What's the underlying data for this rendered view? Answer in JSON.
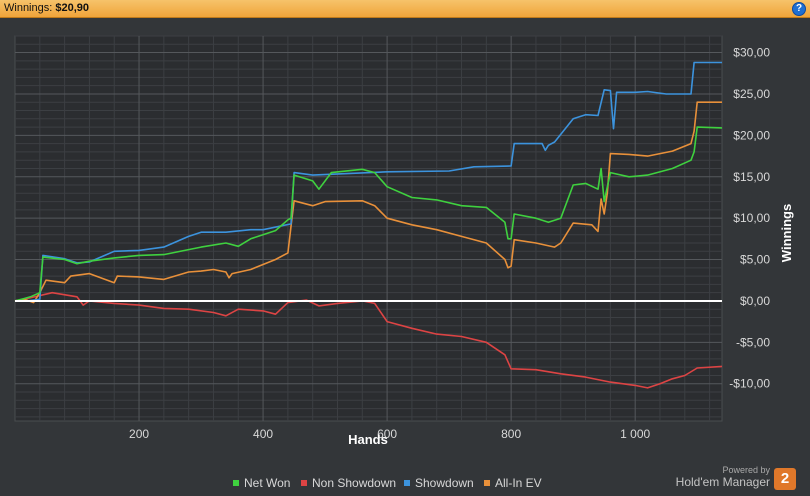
{
  "header": {
    "label": "Winnings:",
    "value": "$20,90",
    "help": "?"
  },
  "chart_data": {
    "type": "line",
    "xlabel": "Hands",
    "ylabel": "Winnings",
    "xlim": [
      0,
      1140
    ],
    "ylim": [
      -14.5,
      32
    ],
    "x_ticks": [
      200,
      400,
      600,
      800,
      1000
    ],
    "x_tick_labels": [
      "200",
      "400",
      "600",
      "800",
      "1 000"
    ],
    "y_ticks": [
      30,
      25,
      20,
      15,
      10,
      5,
      0,
      -5,
      -10
    ],
    "y_tick_labels": [
      "$30,00",
      "$25,00",
      "$20,00",
      "$15,00",
      "$10,00",
      "$5,00",
      "$0,00",
      "-$5,00",
      "-$10,00"
    ],
    "grid": true,
    "zero_line": true,
    "legend_position": "bottom",
    "series": [
      {
        "name": "Net Won",
        "color": "#3fd13f",
        "points": [
          [
            0,
            0
          ],
          [
            15,
            0.3
          ],
          [
            25,
            0.5
          ],
          [
            40,
            1
          ],
          [
            45,
            5.3
          ],
          [
            80,
            5
          ],
          [
            100,
            4.5
          ],
          [
            120,
            4.8
          ],
          [
            160,
            5.2
          ],
          [
            200,
            5.5
          ],
          [
            240,
            5.6
          ],
          [
            280,
            6.2
          ],
          [
            300,
            6.5
          ],
          [
            340,
            7
          ],
          [
            360,
            6.6
          ],
          [
            380,
            7.5
          ],
          [
            420,
            8.5
          ],
          [
            440,
            9.8
          ],
          [
            445,
            10
          ],
          [
            450,
            15.2
          ],
          [
            480,
            14.5
          ],
          [
            490,
            13.5
          ],
          [
            510,
            15.5
          ],
          [
            560,
            15.9
          ],
          [
            580,
            15.5
          ],
          [
            600,
            13.8
          ],
          [
            640,
            12.5
          ],
          [
            680,
            12.2
          ],
          [
            720,
            11.5
          ],
          [
            760,
            11.3
          ],
          [
            790,
            9.5
          ],
          [
            795,
            7.5
          ],
          [
            800,
            7.5
          ],
          [
            805,
            10.5
          ],
          [
            840,
            10
          ],
          [
            860,
            9.5
          ],
          [
            880,
            10
          ],
          [
            900,
            14
          ],
          [
            920,
            14.2
          ],
          [
            940,
            13.5
          ],
          [
            945,
            16
          ],
          [
            950,
            12
          ],
          [
            960,
            15.5
          ],
          [
            990,
            15
          ],
          [
            1020,
            15.2
          ],
          [
            1060,
            16
          ],
          [
            1090,
            17
          ],
          [
            1095,
            18
          ],
          [
            1100,
            21
          ],
          [
            1140,
            20.9
          ]
        ]
      },
      {
        "name": "Non Showdown",
        "color": "#dd4444",
        "points": [
          [
            0,
            0
          ],
          [
            20,
            0.3
          ],
          [
            60,
            1
          ],
          [
            100,
            0.5
          ],
          [
            110,
            -0.5
          ],
          [
            120,
            0
          ],
          [
            160,
            -0.3
          ],
          [
            200,
            -0.5
          ],
          [
            240,
            -0.9
          ],
          [
            280,
            -1
          ],
          [
            320,
            -1.4
          ],
          [
            340,
            -1.8
          ],
          [
            360,
            -1
          ],
          [
            400,
            -1.2
          ],
          [
            420,
            -1.6
          ],
          [
            440,
            -0.2
          ],
          [
            470,
            0.1
          ],
          [
            490,
            -0.6
          ],
          [
            520,
            -0.3
          ],
          [
            560,
            0
          ],
          [
            580,
            -0.3
          ],
          [
            600,
            -2.5
          ],
          [
            640,
            -3.3
          ],
          [
            680,
            -4
          ],
          [
            720,
            -4.3
          ],
          [
            760,
            -5
          ],
          [
            790,
            -6.5
          ],
          [
            800,
            -8.2
          ],
          [
            840,
            -8.3
          ],
          [
            880,
            -8.8
          ],
          [
            920,
            -9.2
          ],
          [
            960,
            -9.8
          ],
          [
            1000,
            -10.2
          ],
          [
            1020,
            -10.5
          ],
          [
            1040,
            -10
          ],
          [
            1060,
            -9.4
          ],
          [
            1080,
            -9
          ],
          [
            1100,
            -8.1
          ],
          [
            1140,
            -7.9
          ]
        ]
      },
      {
        "name": "Showdown",
        "color": "#3c93dd",
        "points": [
          [
            0,
            0
          ],
          [
            20,
            0
          ],
          [
            40,
            0.2
          ],
          [
            45,
            5.5
          ],
          [
            80,
            5.1
          ],
          [
            100,
            4.6
          ],
          [
            120,
            4.7
          ],
          [
            160,
            6
          ],
          [
            200,
            6.1
          ],
          [
            240,
            6.5
          ],
          [
            280,
            7.8
          ],
          [
            300,
            8.3
          ],
          [
            340,
            8.3
          ],
          [
            380,
            8.6
          ],
          [
            400,
            8.6
          ],
          [
            445,
            9.3
          ],
          [
            450,
            15.5
          ],
          [
            480,
            15.2
          ],
          [
            600,
            15.6
          ],
          [
            700,
            15.7
          ],
          [
            740,
            16.2
          ],
          [
            800,
            16.3
          ],
          [
            805,
            19
          ],
          [
            850,
            19
          ],
          [
            855,
            18.2
          ],
          [
            860,
            18.8
          ],
          [
            870,
            19.2
          ],
          [
            900,
            22
          ],
          [
            920,
            22.5
          ],
          [
            940,
            22.4
          ],
          [
            950,
            25.5
          ],
          [
            960,
            25.4
          ],
          [
            965,
            20.8
          ],
          [
            970,
            25.2
          ],
          [
            1000,
            25.2
          ],
          [
            1020,
            25.3
          ],
          [
            1050,
            25
          ],
          [
            1090,
            25
          ],
          [
            1095,
            28.8
          ],
          [
            1140,
            28.8
          ]
        ]
      },
      {
        "name": "All-In EV",
        "color": "#e8903a",
        "points": [
          [
            0,
            0
          ],
          [
            15,
            0.2
          ],
          [
            30,
            -0.2
          ],
          [
            40,
            1
          ],
          [
            50,
            2.5
          ],
          [
            80,
            2.2
          ],
          [
            90,
            3
          ],
          [
            120,
            3.3
          ],
          [
            160,
            2.2
          ],
          [
            165,
            3
          ],
          [
            200,
            2.9
          ],
          [
            240,
            2.6
          ],
          [
            280,
            3.5
          ],
          [
            300,
            3.6
          ],
          [
            320,
            3.8
          ],
          [
            340,
            3.5
          ],
          [
            345,
            2.8
          ],
          [
            350,
            3.3
          ],
          [
            380,
            3.8
          ],
          [
            420,
            5
          ],
          [
            440,
            5.8
          ],
          [
            445,
            9
          ],
          [
            450,
            12.1
          ],
          [
            480,
            11.5
          ],
          [
            500,
            12
          ],
          [
            560,
            12.1
          ],
          [
            580,
            11.5
          ],
          [
            600,
            10
          ],
          [
            640,
            9.2
          ],
          [
            680,
            8.6
          ],
          [
            720,
            7.8
          ],
          [
            760,
            7
          ],
          [
            790,
            5
          ],
          [
            795,
            4
          ],
          [
            800,
            4.2
          ],
          [
            805,
            7.4
          ],
          [
            840,
            7
          ],
          [
            870,
            6.5
          ],
          [
            880,
            7
          ],
          [
            900,
            9.4
          ],
          [
            930,
            9.2
          ],
          [
            940,
            8.4
          ],
          [
            945,
            12.3
          ],
          [
            950,
            10.5
          ],
          [
            955,
            13
          ],
          [
            960,
            17.8
          ],
          [
            990,
            17.7
          ],
          [
            1020,
            17.5
          ],
          [
            1060,
            18.1
          ],
          [
            1090,
            19
          ],
          [
            1095,
            20.5
          ],
          [
            1100,
            24
          ],
          [
            1140,
            24
          ]
        ]
      }
    ]
  },
  "branding": {
    "powered_by": "Powered by",
    "name": "Hold'em Manager",
    "logo": "2"
  }
}
